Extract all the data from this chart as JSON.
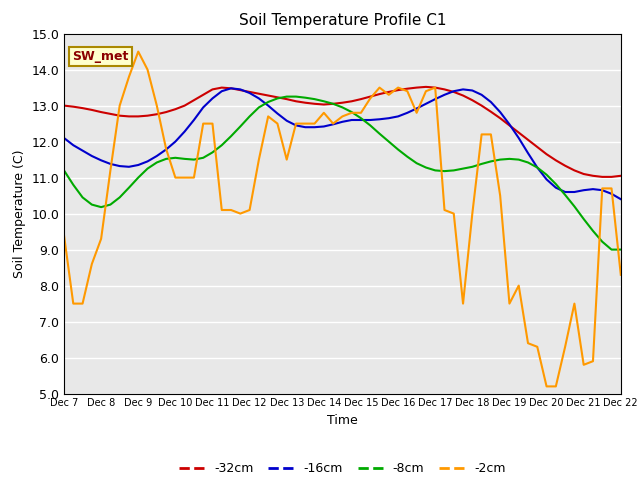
{
  "title": "Soil Temperature Profile C1",
  "xlabel": "Time",
  "ylabel": "Soil Temperature (C)",
  "ylim": [
    5.0,
    15.0
  ],
  "yticks": [
    5.0,
    6.0,
    7.0,
    8.0,
    9.0,
    10.0,
    11.0,
    12.0,
    13.0,
    14.0,
    15.0
  ],
  "x_labels": [
    "Dec 7",
    "Dec 8",
    "Dec 9",
    "Dec 10",
    "Dec 11",
    "Dec 12",
    "Dec 13",
    "Dec 14",
    "Dec 15",
    "Dec 16",
    "Dec 17",
    "Dec 18",
    "Dec 19",
    "Dec 20",
    "Dec 21",
    "Dec 22"
  ],
  "annotation": "SW_met",
  "background_color": "#e8e8e8",
  "series_order": [
    "-32cm",
    "-16cm",
    "-8cm",
    "-2cm"
  ],
  "series": {
    "-32cm": {
      "color": "#cc0000",
      "values": [
        13.0,
        12.97,
        12.93,
        12.88,
        12.82,
        12.77,
        12.72,
        12.7,
        12.7,
        12.72,
        12.76,
        12.82,
        12.9,
        13.0,
        13.15,
        13.3,
        13.45,
        13.5,
        13.48,
        13.43,
        13.38,
        13.33,
        13.28,
        13.23,
        13.18,
        13.12,
        13.08,
        13.05,
        13.03,
        13.05,
        13.08,
        13.12,
        13.18,
        13.25,
        13.32,
        13.38,
        13.43,
        13.47,
        13.5,
        13.52,
        13.5,
        13.45,
        13.38,
        13.28,
        13.15,
        13.0,
        12.83,
        12.65,
        12.45,
        12.25,
        12.05,
        11.85,
        11.65,
        11.48,
        11.33,
        11.2,
        11.1,
        11.05,
        11.02,
        11.02,
        11.05
      ]
    },
    "-16cm": {
      "color": "#0000cc",
      "values": [
        12.1,
        11.9,
        11.75,
        11.6,
        11.48,
        11.38,
        11.32,
        11.3,
        11.35,
        11.45,
        11.6,
        11.78,
        12.0,
        12.28,
        12.6,
        12.95,
        13.2,
        13.4,
        13.48,
        13.45,
        13.35,
        13.2,
        13.0,
        12.78,
        12.58,
        12.45,
        12.4,
        12.4,
        12.42,
        12.48,
        12.55,
        12.6,
        12.6,
        12.6,
        12.62,
        12.65,
        12.7,
        12.8,
        12.92,
        13.05,
        13.18,
        13.3,
        13.4,
        13.45,
        13.42,
        13.3,
        13.1,
        12.82,
        12.48,
        12.1,
        11.68,
        11.28,
        10.95,
        10.72,
        10.6,
        10.6,
        10.65,
        10.68,
        10.65,
        10.55,
        10.4
      ]
    },
    "-8cm": {
      "color": "#00aa00",
      "values": [
        11.2,
        10.8,
        10.45,
        10.25,
        10.18,
        10.25,
        10.45,
        10.72,
        11.0,
        11.25,
        11.42,
        11.52,
        11.55,
        11.52,
        11.5,
        11.55,
        11.7,
        11.9,
        12.15,
        12.42,
        12.7,
        12.95,
        13.1,
        13.2,
        13.25,
        13.25,
        13.22,
        13.18,
        13.12,
        13.05,
        12.95,
        12.82,
        12.65,
        12.45,
        12.22,
        12.0,
        11.78,
        11.58,
        11.4,
        11.28,
        11.2,
        11.18,
        11.2,
        11.25,
        11.3,
        11.38,
        11.45,
        11.5,
        11.52,
        11.5,
        11.42,
        11.28,
        11.08,
        10.82,
        10.52,
        10.2,
        9.85,
        9.52,
        9.22,
        9.0,
        9.0
      ]
    },
    "-2cm": {
      "color": "#ff9900",
      "values": [
        9.4,
        7.5,
        7.5,
        8.6,
        9.3,
        11.2,
        13.0,
        13.8,
        14.5,
        14.0,
        13.0,
        11.8,
        11.0,
        11.0,
        11.0,
        12.5,
        12.5,
        10.1,
        10.1,
        10.0,
        10.1,
        11.5,
        12.7,
        12.5,
        11.5,
        12.5,
        12.5,
        12.5,
        12.8,
        12.5,
        12.7,
        12.8,
        12.8,
        13.2,
        13.5,
        13.3,
        13.5,
        13.4,
        12.8,
        13.4,
        13.5,
        10.1,
        10.0,
        7.5,
        10.0,
        12.2,
        12.2,
        10.5,
        7.5,
        8.0,
        6.4,
        6.3,
        5.2,
        5.2,
        6.3,
        7.5,
        5.8,
        5.9,
        10.7,
        10.7,
        8.3
      ]
    }
  }
}
